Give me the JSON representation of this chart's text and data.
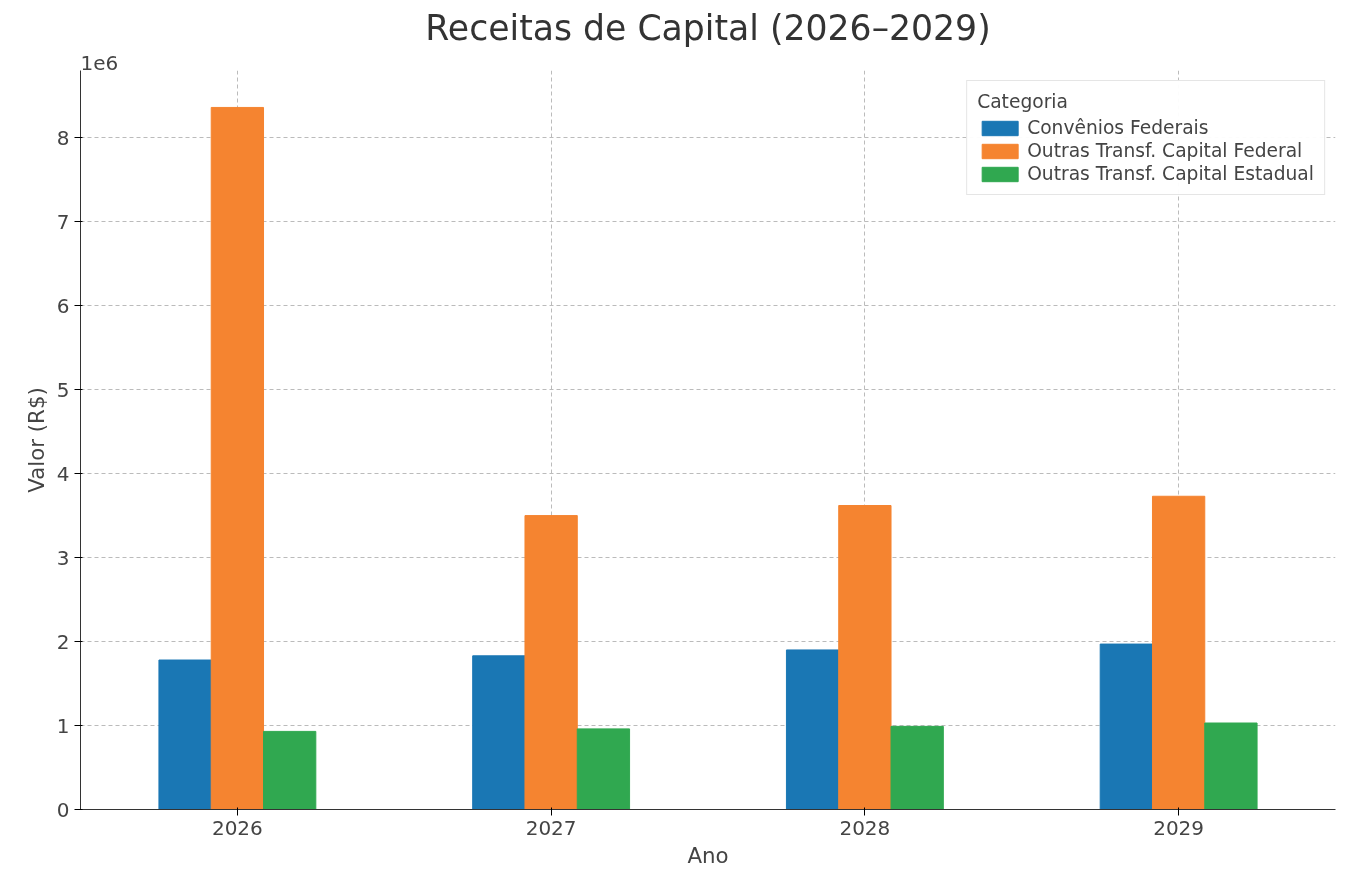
{
  "chart_data": {
    "type": "bar",
    "title": "Receitas de Capital (2026–2029)",
    "xlabel": "Ano",
    "ylabel": "Valor (R$)",
    "categories": [
      "2026",
      "2027",
      "2028",
      "2029"
    ],
    "series": [
      {
        "name": "Convênios Federais",
        "color": "#1a77b4",
        "values": [
          1.78,
          1.83,
          1.9,
          1.97
        ]
      },
      {
        "name": "Outras Transf. Capital Federal",
        "color": "#f58430",
        "values": [
          8.36,
          3.5,
          3.62,
          3.73
        ]
      },
      {
        "name": "Outras Transf. Capital Estadual",
        "color": "#30a850",
        "values": [
          0.93,
          0.96,
          0.99,
          1.03
        ]
      }
    ],
    "ylim": [
      0,
      8.8
    ],
    "yticks": [
      0,
      1,
      2,
      3,
      4,
      5,
      6,
      7,
      8
    ],
    "annotations": [
      "1e6"
    ],
    "legend_title": "Categoria",
    "legend": "top right",
    "grid": true
  }
}
